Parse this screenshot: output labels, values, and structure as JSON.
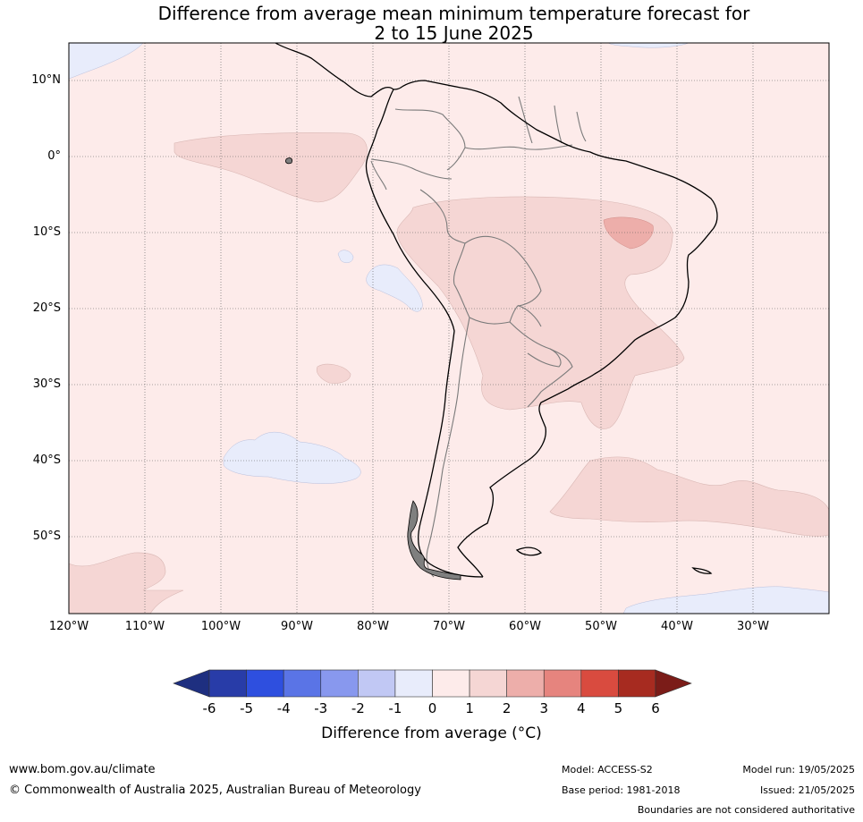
{
  "title": {
    "line1": "Difference from average mean minimum temperature forecast for",
    "line2": "2 to 15 June 2025"
  },
  "map": {
    "lat_labels": [
      "10°N",
      "0°",
      "10°S",
      "20°S",
      "30°S",
      "40°S",
      "50°S"
    ],
    "lon_labels": [
      "120°W",
      "110°W",
      "100°W",
      "90°W",
      "80°W",
      "70°W",
      "60°W",
      "50°W",
      "40°W",
      "30°W"
    ]
  },
  "colorbar": {
    "ticks": [
      "-6",
      "-5",
      "-4",
      "-3",
      "-2",
      "-1",
      "0",
      "1",
      "2",
      "3",
      "4",
      "5",
      "6"
    ],
    "colors": [
      "#283ca8",
      "#2e4fdf",
      "#5a74e6",
      "#8898ee",
      "#c1c8f4",
      "#e8ecfb",
      "#fdebea",
      "#f5d6d4",
      "#edaeaa",
      "#e6847e",
      "#d94b3f",
      "#a72b20"
    ],
    "under_color": "#1e2f80",
    "over_color": "#7b1c18",
    "title": "Difference from average (°C)"
  },
  "footer": {
    "url": "www.bom.gov.au/climate",
    "copyright": "© Commonwealth of Australia 2025, Australian Bureau of Meteorology",
    "model": "Model: ACCESS-S2",
    "base_period": "Base period: 1981-2018",
    "model_run": "Model run: 19/05/2025",
    "issued": "Issued: 21/05/2025",
    "disclaimer": "Boundaries are not considered authoritative"
  }
}
